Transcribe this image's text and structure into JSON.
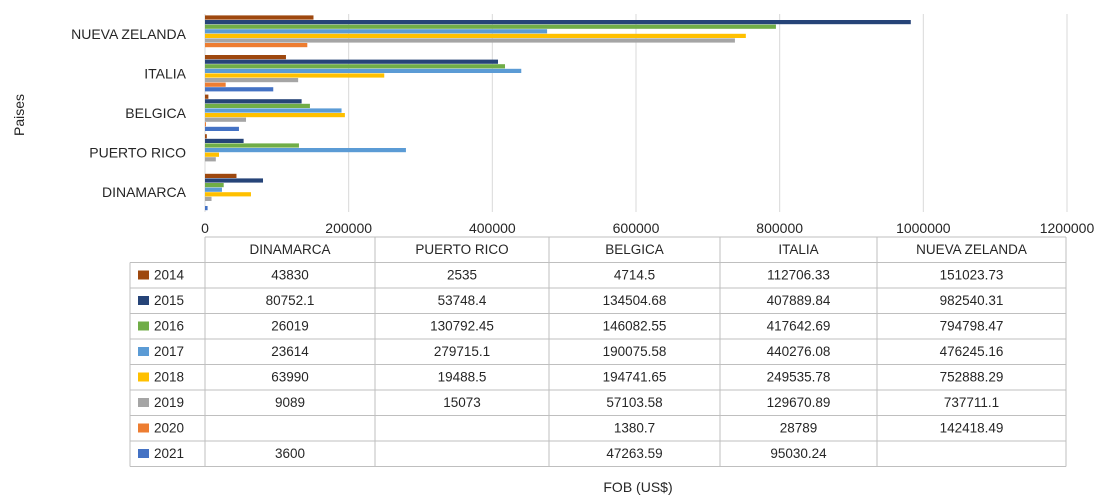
{
  "chart_data": {
    "type": "bar",
    "orientation": "horizontal",
    "categories": [
      "DINAMARCA",
      "PUERTO RICO",
      "BELGICA",
      "ITALIA",
      "NUEVA ZELANDA"
    ],
    "series": [
      {
        "name": "2014",
        "color": "#9e480e",
        "values": [
          "43830",
          "2535",
          "4714.5",
          "112706.33",
          "151023.73"
        ]
      },
      {
        "name": "2015",
        "color": "#264478",
        "values": [
          "80752.1",
          "53748.4",
          "134504.68",
          "407889.84",
          "982540.31"
        ]
      },
      {
        "name": "2016",
        "color": "#70ad47",
        "values": [
          "26019",
          "130792.45",
          "146082.55",
          "417642.69",
          "794798.47"
        ]
      },
      {
        "name": "2017",
        "color": "#5b9bd5",
        "values": [
          "23614",
          "279715.1",
          "190075.58",
          "440276.08",
          "476245.16"
        ]
      },
      {
        "name": "2018",
        "color": "#ffc000",
        "values": [
          "63990",
          "19488.5",
          "194741.65",
          "249535.78",
          "752888.29"
        ]
      },
      {
        "name": "2019",
        "color": "#a5a5a5",
        "values": [
          "9089",
          "15073",
          "57103.58",
          "129670.89",
          "737711.1"
        ]
      },
      {
        "name": "2020",
        "color": "#ed7d31",
        "values": [
          "",
          "",
          "1380.7",
          "28789",
          "142418.49"
        ]
      },
      {
        "name": "2021",
        "color": "#4472c4",
        "values": [
          "3600",
          "",
          "47263.59",
          "95030.24",
          ""
        ]
      }
    ],
    "xlabel": "FOB (US$)",
    "ylabel": "Paises",
    "xlim": [
      0,
      1200000
    ],
    "xticks": [
      "0",
      "200000",
      "400000",
      "600000",
      "800000",
      "1000000",
      "1200000"
    ],
    "grid": true,
    "legend": "data-table"
  }
}
